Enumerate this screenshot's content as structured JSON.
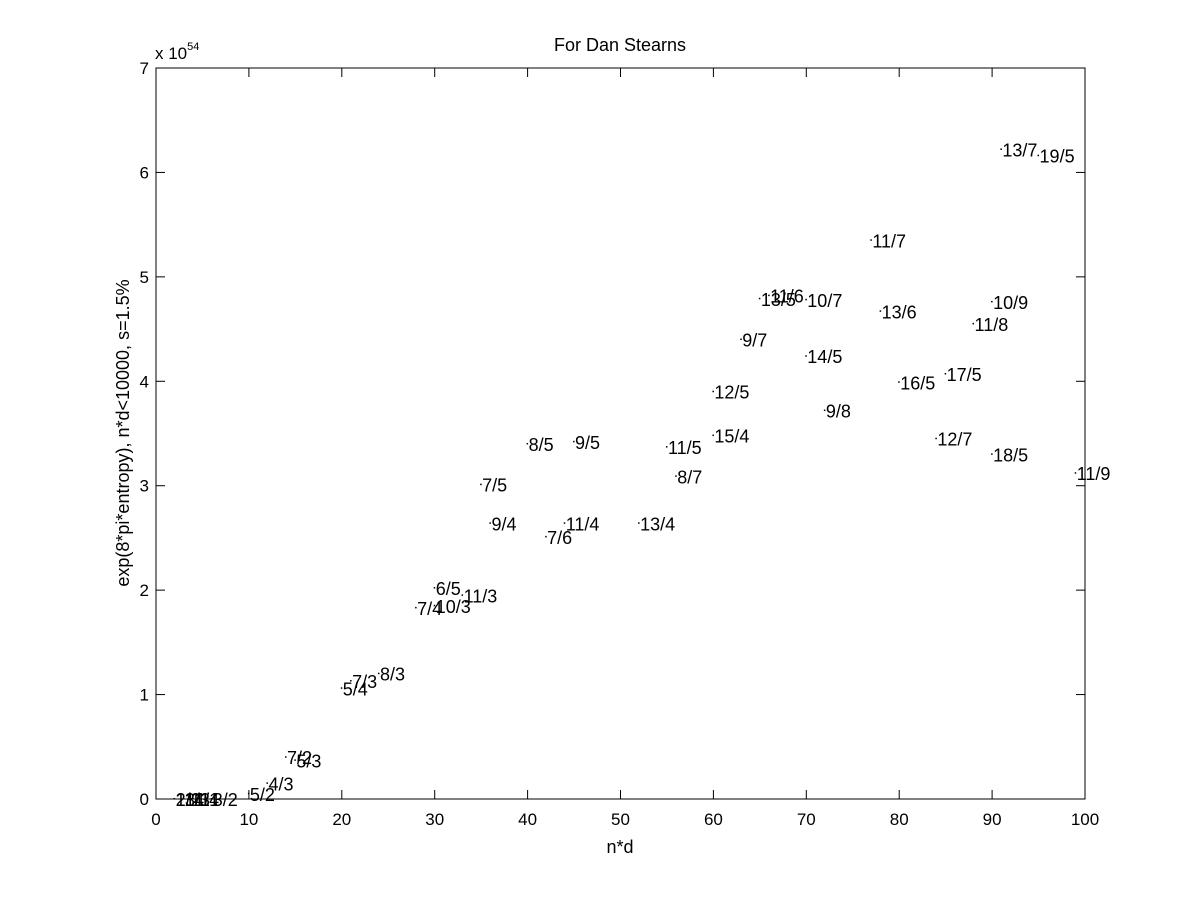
{
  "chart_data": {
    "type": "scatter",
    "title": "For Dan Stearns",
    "xlabel": "n*d",
    "ylabel": "exp(8*pi*entropy), n*d<10000, s=1.5%",
    "y_multiplier_base": "x 10",
    "y_multiplier_exponent": "54",
    "xlim": [
      0,
      100
    ],
    "ylim": [
      0,
      7
    ],
    "x_ticks": [
      0,
      10,
      20,
      30,
      40,
      50,
      60,
      70,
      80,
      90,
      100
    ],
    "y_ticks": [
      0,
      1,
      2,
      3,
      4,
      5,
      6,
      7
    ],
    "grid": false,
    "points": [
      {
        "label": "1/2",
        "x": 2,
        "y": 0.0
      },
      {
        "label": "2/1",
        "x": 2,
        "y": 0.0
      },
      {
        "label": "1/3",
        "x": 3,
        "y": 0.0
      },
      {
        "label": "3/1",
        "x": 3,
        "y": 0.0
      },
      {
        "label": "1/4",
        "x": 4,
        "y": 0.0
      },
      {
        "label": "4/1",
        "x": 4,
        "y": 0.0
      },
      {
        "label": "3/2",
        "x": 6,
        "y": 0.0
      },
      {
        "label": "5/2",
        "x": 10,
        "y": 0.05
      },
      {
        "label": "4/3",
        "x": 12,
        "y": 0.15
      },
      {
        "label": "7/2",
        "x": 14,
        "y": 0.4
      },
      {
        "label": "5/3",
        "x": 15,
        "y": 0.37
      },
      {
        "label": "5/4",
        "x": 20,
        "y": 1.06
      },
      {
        "label": "7/3",
        "x": 21,
        "y": 1.13
      },
      {
        "label": "8/3",
        "x": 24,
        "y": 1.2
      },
      {
        "label": "7/4",
        "x": 28,
        "y": 1.83
      },
      {
        "label": "6/5",
        "x": 30,
        "y": 2.02
      },
      {
        "label": "10/3",
        "x": 30,
        "y": 1.85
      },
      {
        "label": "11/3",
        "x": 33,
        "y": 1.95
      },
      {
        "label": "7/5",
        "x": 35,
        "y": 3.01
      },
      {
        "label": "9/4",
        "x": 36,
        "y": 2.64
      },
      {
        "label": "8/5",
        "x": 40,
        "y": 3.4
      },
      {
        "label": "7/6",
        "x": 42,
        "y": 2.51
      },
      {
        "label": "11/4",
        "x": 44,
        "y": 2.64
      },
      {
        "label": "9/5",
        "x": 45,
        "y": 3.42
      },
      {
        "label": "13/4",
        "x": 52,
        "y": 2.64
      },
      {
        "label": "8/7",
        "x": 56,
        "y": 3.09
      },
      {
        "label": "11/5",
        "x": 55,
        "y": 3.37
      },
      {
        "label": "15/4",
        "x": 60,
        "y": 3.48
      },
      {
        "label": "12/5",
        "x": 60,
        "y": 3.9
      },
      {
        "label": "9/7",
        "x": 63,
        "y": 4.4
      },
      {
        "label": "13/5",
        "x": 65,
        "y": 4.79
      },
      {
        "label": "11/6",
        "x": 66,
        "y": 4.82
      },
      {
        "label": "10/7",
        "x": 70,
        "y": 4.78
      },
      {
        "label": "14/5",
        "x": 70,
        "y": 4.24
      },
      {
        "label": "9/8",
        "x": 72,
        "y": 3.72
      },
      {
        "label": "11/7",
        "x": 77,
        "y": 5.35
      },
      {
        "label": "13/6",
        "x": 78,
        "y": 4.67
      },
      {
        "label": "16/5",
        "x": 80,
        "y": 3.99
      },
      {
        "label": "12/7",
        "x": 84,
        "y": 3.45
      },
      {
        "label": "17/5",
        "x": 85,
        "y": 4.07
      },
      {
        "label": "11/8",
        "x": 88,
        "y": 4.55
      },
      {
        "label": "10/9",
        "x": 90,
        "y": 4.76
      },
      {
        "label": "18/5",
        "x": 90,
        "y": 3.3
      },
      {
        "label": "13/7",
        "x": 91,
        "y": 6.22
      },
      {
        "label": "19/5",
        "x": 95,
        "y": 6.16
      },
      {
        "label": "11/9",
        "x": 99,
        "y": 3.12
      }
    ]
  }
}
